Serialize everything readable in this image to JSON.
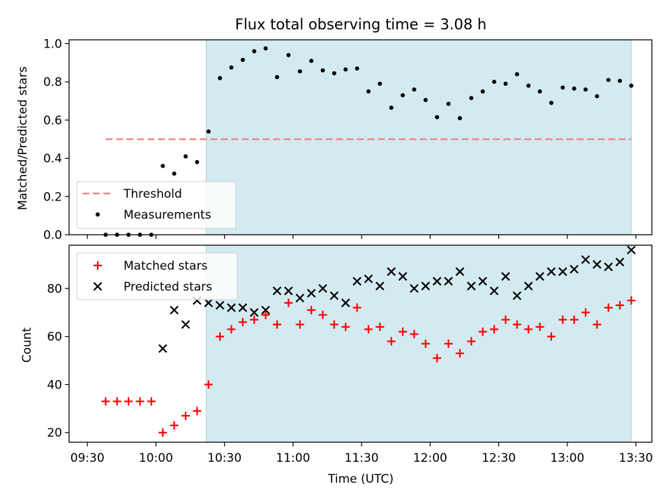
{
  "title": "Flux total observing time = 3.08 h",
  "colors": {
    "shade": "#d3eaf0",
    "threshold": "#f08080",
    "measurements": "#000000",
    "matched": "#ff0000",
    "predicted": "#000000"
  },
  "chart_data": [
    {
      "type": "scatter",
      "ylabel": "Matched/Predicted stars",
      "ylim": [
        0.0,
        1.02
      ],
      "yticks": [
        {
          "v": 0.0,
          "label": "0.0"
        },
        {
          "v": 0.2,
          "label": "0.2"
        },
        {
          "v": 0.4,
          "label": "0.4"
        },
        {
          "v": 0.6,
          "label": "0.6"
        },
        {
          "v": 0.8,
          "label": "0.8"
        },
        {
          "v": 1.0,
          "label": "1.0"
        }
      ],
      "shaded_x_range": [
        "10:22",
        "13:28"
      ],
      "legend_position": "lower-left",
      "threshold": {
        "name": "Threshold",
        "x": [
          "09:38",
          "13:28"
        ],
        "y": 0.5
      },
      "series": [
        {
          "name": "Measurements",
          "x": [
            "09:38",
            "09:43",
            "09:48",
            "09:53",
            "09:58",
            "10:03",
            "10:08",
            "10:13",
            "10:18",
            "10:23",
            "10:28",
            "10:33",
            "10:38",
            "10:43",
            "10:48",
            "10:53",
            "10:58",
            "11:03",
            "11:08",
            "11:13",
            "11:18",
            "11:23",
            "11:28",
            "11:33",
            "11:38",
            "11:43",
            "11:48",
            "11:53",
            "11:58",
            "12:03",
            "12:08",
            "12:13",
            "12:18",
            "12:23",
            "12:28",
            "12:33",
            "12:38",
            "12:43",
            "12:48",
            "12:53",
            "12:58",
            "13:03",
            "13:08",
            "13:13",
            "13:18",
            "13:23",
            "13:28"
          ],
          "y": [
            0.0,
            0.0,
            0.0,
            0.0,
            0.0,
            0.36,
            0.32,
            0.41,
            0.38,
            0.54,
            0.82,
            0.875,
            0.915,
            0.96,
            0.975,
            0.825,
            0.94,
            0.855,
            0.91,
            0.86,
            0.845,
            0.865,
            0.87,
            0.75,
            0.79,
            0.665,
            0.73,
            0.76,
            0.705,
            0.615,
            0.685,
            0.61,
            0.715,
            0.75,
            0.8,
            0.79,
            0.84,
            0.78,
            0.75,
            0.69,
            0.77,
            0.765,
            0.76,
            0.725,
            0.81,
            0.805,
            0.78
          ]
        }
      ]
    },
    {
      "type": "scatter",
      "xlabel": "Time (UTC)",
      "ylabel": "Count",
      "ylim": [
        16,
        98
      ],
      "yticks": [
        {
          "v": 20,
          "label": "20"
        },
        {
          "v": 40,
          "label": "40"
        },
        {
          "v": 60,
          "label": "60"
        },
        {
          "v": 80,
          "label": "80"
        }
      ],
      "xticks": [
        "09:30",
        "10:00",
        "10:30",
        "11:00",
        "11:30",
        "12:00",
        "12:30",
        "13:00",
        "13:30"
      ],
      "shaded_x_range": [
        "10:22",
        "13:28"
      ],
      "legend_position": "upper-left",
      "series": [
        {
          "name": "Matched stars",
          "marker": "+",
          "x": [
            "09:38",
            "09:43",
            "09:48",
            "09:53",
            "09:58",
            "10:03",
            "10:08",
            "10:13",
            "10:18",
            "10:23",
            "10:28",
            "10:33",
            "10:38",
            "10:43",
            "10:48",
            "10:53",
            "10:58",
            "11:03",
            "11:08",
            "11:13",
            "11:18",
            "11:23",
            "11:28",
            "11:33",
            "11:38",
            "11:43",
            "11:48",
            "11:53",
            "11:58",
            "12:03",
            "12:08",
            "12:13",
            "12:18",
            "12:23",
            "12:28",
            "12:33",
            "12:38",
            "12:43",
            "12:48",
            "12:53",
            "12:58",
            "13:03",
            "13:08",
            "13:13",
            "13:18",
            "13:23",
            "13:28"
          ],
          "y": [
            33,
            33,
            33,
            33,
            33,
            20,
            23,
            27,
            29,
            40,
            60,
            63,
            66,
            67,
            69,
            65,
            74,
            65,
            71,
            69,
            65,
            64,
            72,
            63,
            64,
            58,
            62,
            61,
            57,
            51,
            57,
            53,
            58,
            62,
            63,
            67,
            65,
            63,
            64,
            60,
            67,
            67,
            70,
            65,
            72,
            73,
            75
          ]
        },
        {
          "name": "Predicted stars",
          "marker": "x",
          "x": [
            "10:03",
            "10:08",
            "10:13",
            "10:18",
            "10:23",
            "10:28",
            "10:33",
            "10:38",
            "10:43",
            "10:48",
            "10:53",
            "10:58",
            "11:03",
            "11:08",
            "11:13",
            "11:18",
            "11:23",
            "11:28",
            "11:33",
            "11:38",
            "11:43",
            "11:48",
            "11:53",
            "11:58",
            "12:03",
            "12:08",
            "12:13",
            "12:18",
            "12:23",
            "12:28",
            "12:33",
            "12:38",
            "12:43",
            "12:48",
            "12:53",
            "12:58",
            "13:03",
            "13:08",
            "13:13",
            "13:18",
            "13:23",
            "13:28"
          ],
          "y": [
            55,
            71,
            65,
            75,
            74,
            73,
            72,
            72,
            70,
            71,
            79,
            79,
            76,
            78,
            80,
            77,
            74,
            83,
            84,
            81,
            87,
            85,
            80,
            81,
            83,
            83,
            87,
            81,
            83,
            79,
            85,
            77,
            81,
            85,
            87,
            87,
            88,
            92,
            90,
            89,
            91,
            96
          ]
        }
      ]
    }
  ]
}
